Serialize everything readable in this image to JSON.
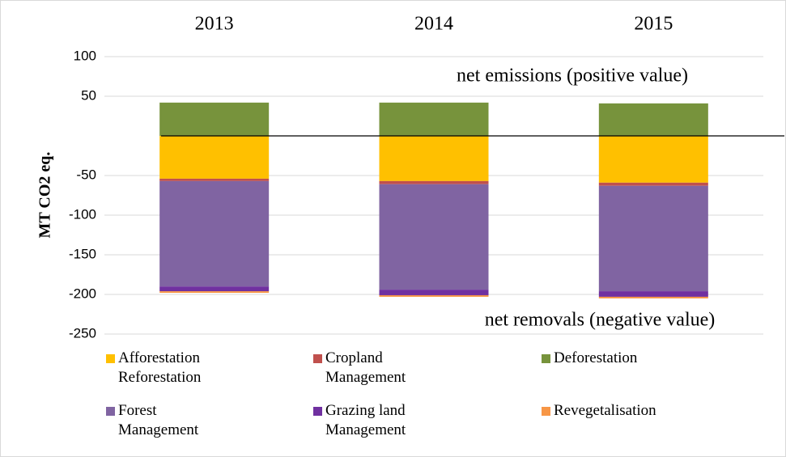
{
  "chart_data": {
    "type": "stacked_bar",
    "categories": [
      "2013",
      "2014",
      "2015"
    ],
    "y_label": "MT CO2 eq.",
    "annotations": [
      "net emissions (positive value)",
      "net removals (negative value)"
    ],
    "series": [
      {
        "name": "Afforestation Reforestation",
        "color": "#ffc000",
        "values": [
          -54,
          -57,
          -59
        ]
      },
      {
        "name": "Cropland Management",
        "color": "#c0504d",
        "values": [
          -3,
          -4,
          -4
        ]
      },
      {
        "name": "Deforestation",
        "color": "#77933c",
        "values": [
          42,
          42,
          41
        ]
      },
      {
        "name": "Forest Management",
        "color": "#8064a2",
        "values": [
          -133,
          -133,
          -133
        ]
      },
      {
        "name": "Grazing land Management",
        "color": "#7030a0",
        "values": [
          -6,
          -7,
          -7
        ]
      },
      {
        "name": "Revegetalisation",
        "color": "#f79646",
        "values": [
          -2,
          -2,
          -2
        ]
      }
    ],
    "ylim": [
      -250,
      100
    ],
    "yticks": [
      -250,
      -200,
      -150,
      -100,
      -50,
      50,
      100
    ],
    "grid": true
  }
}
